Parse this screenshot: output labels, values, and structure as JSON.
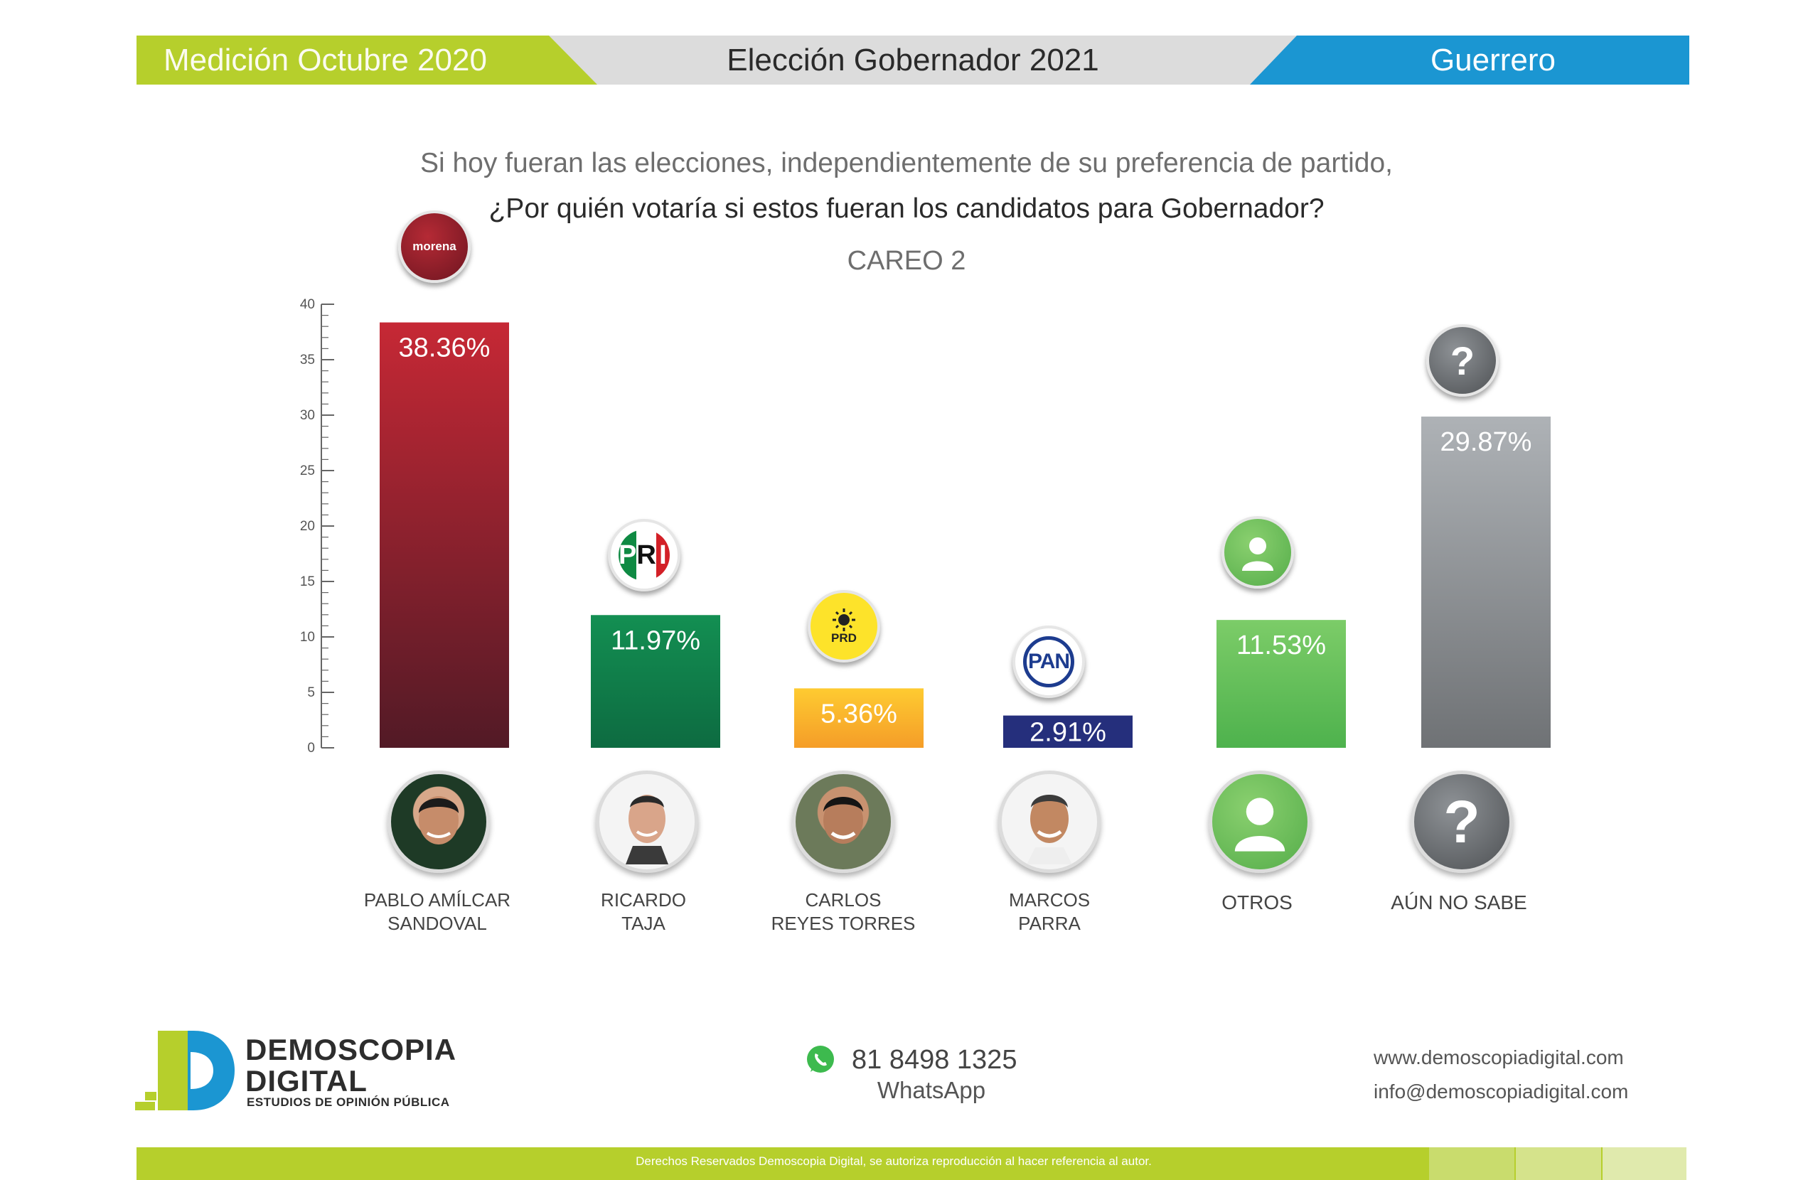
{
  "header": {
    "left": "Medición Octubre 2020",
    "center": "Elección Gobernador 2021",
    "right": "Guerrero"
  },
  "question": {
    "line1": "Si hoy fueran las elecciones, independientemente de su preferencia de partido,",
    "line2": "¿Por quién votaría si estos fueran los candidatos para Gobernador?",
    "subtitle": "CAREO 2"
  },
  "chart_data": {
    "type": "bar",
    "title": "CAREO 2",
    "categories": [
      "PABLO AMÍLCAR SANDOVAL",
      "RICARDO TAJA",
      "CARLOS REYES TORRES",
      "MARCOS PARRA",
      "OTROS",
      "AÚN NO SABE"
    ],
    "values": [
      38.36,
      11.97,
      5.36,
      2.91,
      11.53,
      29.87
    ],
    "value_labels": [
      "38.36%",
      "11.97%",
      "5.36%",
      "2.91%",
      "11.53%",
      "29.87%"
    ],
    "parties": [
      "morena",
      "PRI",
      "PRD",
      "PAN",
      "",
      ""
    ],
    "ylim": [
      0,
      40
    ],
    "yticks": [
      0,
      5,
      10,
      15,
      20,
      25,
      30,
      35,
      40
    ],
    "grid": false,
    "colors": [
      [
        "#c62835",
        "#521a26"
      ],
      [
        "#138f52",
        "#0d6b41"
      ],
      [
        "#fecb31",
        "#f59d28"
      ],
      [
        "#252f7c",
        "#252f7c"
      ],
      [
        "#7ccc68",
        "#4eb24d"
      ],
      [
        "#aeb2b6",
        "#6f7275"
      ]
    ]
  },
  "candidates": [
    {
      "line1": "PABLO AMÍLCAR",
      "line2": "SANDOVAL"
    },
    {
      "line1": "RICARDO",
      "line2": "TAJA"
    },
    {
      "line1": "CARLOS",
      "line2": "REYES TORRES"
    },
    {
      "line1": "MARCOS",
      "line2": "PARRA"
    },
    {
      "line1": "OTROS",
      "line2": ""
    },
    {
      "line1": "AÚN NO SABE",
      "line2": ""
    }
  ],
  "badges": {
    "morena": "morena",
    "pri_p": "P",
    "pri_r": "R",
    "pri_i": "I",
    "prd": "PRD",
    "pan": "PAN",
    "unknown": "?"
  },
  "brand": {
    "line1": "DEMOSCOPIA",
    "line2": "DIGITAL",
    "tagline": "ESTUDIOS DE OPINIÓN PÚBLICA"
  },
  "contact": {
    "phone": "81 8498 1325",
    "phone_label": "WhatsApp",
    "website": "www.demoscopiadigital.com",
    "email": "info@demoscopiadigital.com"
  },
  "footer": {
    "copyright": "Derechos Reservados Demoscopia Digital, se autoriza reproducción al hacer referencia al autor."
  },
  "colors": {
    "brand_green": "#b6cf2c",
    "brand_blue": "#1b96d2"
  }
}
